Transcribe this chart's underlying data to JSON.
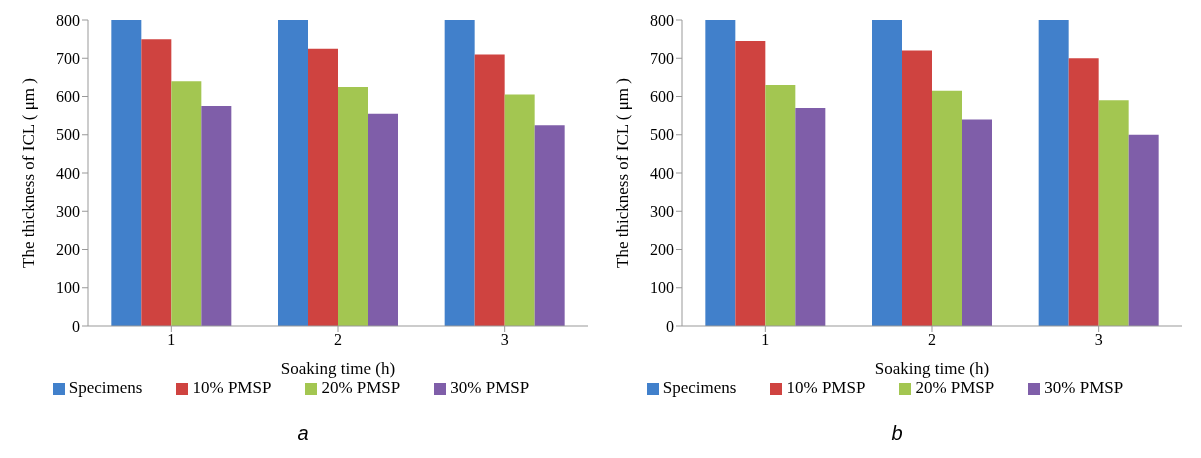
{
  "chart_data": [
    {
      "type": "bar",
      "xlabel": "Soaking  time (h)",
      "ylabel": "The  thickness  of  ICL ( μm )",
      "categories": [
        "1",
        "2",
        "3"
      ],
      "ylim": [
        0,
        800
      ],
      "yticks": [
        0,
        100,
        200,
        300,
        400,
        500,
        600,
        700,
        800
      ],
      "grid": false,
      "legend": "bottom",
      "annotations": [
        "a"
      ],
      "series": [
        {
          "name": "Specimens",
          "color": "#4180cb",
          "values": [
            800,
            800,
            800
          ]
        },
        {
          "name": "10% PMSP",
          "color": "#cf4340",
          "values": [
            750,
            725,
            710
          ]
        },
        {
          "name": "20% PMSP",
          "color": "#a3c651",
          "values": [
            640,
            625,
            605
          ]
        },
        {
          "name": "30% PMSP",
          "color": "#7f5ea9",
          "values": [
            575,
            555,
            525
          ]
        }
      ]
    },
    {
      "type": "bar",
      "xlabel": "Soaking  time (h)",
      "ylabel": "The thickness of ICL ( μm )",
      "categories": [
        "1",
        "2",
        "3"
      ],
      "ylim": [
        0,
        800
      ],
      "yticks": [
        0,
        100,
        200,
        300,
        400,
        500,
        600,
        700,
        800
      ],
      "grid": false,
      "legend": "bottom",
      "annotations": [
        "b"
      ],
      "series": [
        {
          "name": "Specimens",
          "color": "#4180cb",
          "values": [
            800,
            800,
            800
          ]
        },
        {
          "name": "10% PMSP",
          "color": "#cf4340",
          "values": [
            745,
            720,
            700
          ]
        },
        {
          "name": "20% PMSP",
          "color": "#a3c651",
          "values": [
            630,
            615,
            590
          ]
        },
        {
          "name": "30% PMSP",
          "color": "#7f5ea9",
          "values": [
            570,
            540,
            500
          ]
        }
      ]
    }
  ]
}
